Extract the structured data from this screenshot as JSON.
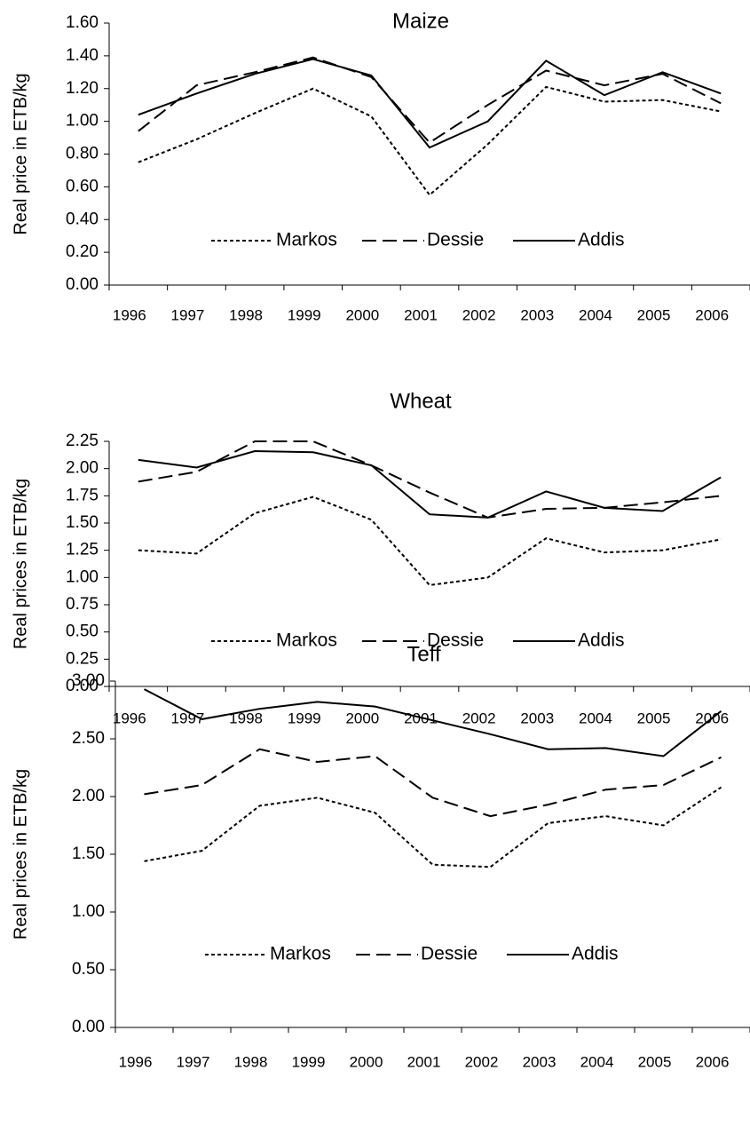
{
  "chart_data": [
    {
      "type": "line",
      "title": "Maize",
      "ylabel": "Real price in ETB/kg",
      "categories": [
        "1996",
        "1997",
        "1998",
        "1999",
        "2000",
        "2001",
        "2002",
        "2003",
        "2004",
        "2005",
        "2006"
      ],
      "ylim": [
        0,
        1.6
      ],
      "yticks": [
        {
          "value": 0,
          "label": "0.00"
        },
        {
          "value": 0.2,
          "label": "0.20"
        },
        {
          "value": 0.4,
          "label": "0.40"
        },
        {
          "value": 0.6,
          "label": "0.60"
        },
        {
          "value": 0.8,
          "label": "0.80"
        },
        {
          "value": 1,
          "label": "1.00"
        },
        {
          "value": 1.2,
          "label": "1.20"
        },
        {
          "value": 1.4,
          "label": "1.40"
        },
        {
          "value": 1.6,
          "label": "1.60"
        }
      ],
      "series": [
        {
          "name": "Markos",
          "color": "#000000",
          "style": "dotted",
          "values": [
            0.75,
            0.89,
            1.05,
            1.2,
            1.03,
            0.55,
            0.86,
            1.21,
            1.12,
            1.13,
            1.06
          ]
        },
        {
          "name": "Dessie",
          "color": "#000000",
          "style": "dashed",
          "values": [
            0.94,
            1.22,
            1.3,
            1.39,
            1.27,
            0.87,
            1.1,
            1.31,
            1.22,
            1.29,
            1.11
          ]
        },
        {
          "name": "Addis",
          "color": "#000000",
          "style": "solid",
          "values": [
            1.04,
            1.17,
            1.29,
            1.38,
            1.28,
            0.84,
            1.0,
            1.37,
            1.16,
            1.3,
            1.17
          ]
        }
      ]
    },
    {
      "type": "line",
      "title": "Wheat",
      "ylabel": "Real prices in ETB/kg",
      "categories": [
        "1996",
        "1997",
        "1998",
        "1999",
        "2000",
        "2001",
        "2002",
        "2003",
        "2004",
        "2005",
        "2006"
      ],
      "ylim": [
        0,
        2.25
      ],
      "yticks": [
        {
          "value": 0,
          "label": "0.00"
        },
        {
          "value": 0.25,
          "label": "0.25"
        },
        {
          "value": 0.5,
          "label": "0.50"
        },
        {
          "value": 0.75,
          "label": "0.75"
        },
        {
          "value": 1,
          "label": "1.00"
        },
        {
          "value": 1.25,
          "label": "1.25"
        },
        {
          "value": 1.5,
          "label": "1.50"
        },
        {
          "value": 1.75,
          "label": "1.75"
        },
        {
          "value": 2,
          "label": "2.00"
        },
        {
          "value": 2.25,
          "label": "2.25"
        }
      ],
      "series": [
        {
          "name": "Markos",
          "color": "#000000",
          "style": "dotted",
          "values": [
            1.25,
            1.22,
            1.59,
            1.74,
            1.53,
            0.93,
            1.0,
            1.36,
            1.23,
            1.25,
            1.35
          ]
        },
        {
          "name": "Dessie",
          "color": "#000000",
          "style": "dashed",
          "values": [
            1.88,
            1.97,
            2.25,
            2.25,
            2.03,
            1.78,
            1.55,
            1.63,
            1.64,
            1.69,
            1.75
          ]
        },
        {
          "name": "Addis",
          "color": "#000000",
          "style": "solid",
          "values": [
            2.08,
            2.01,
            2.16,
            2.15,
            2.03,
            1.58,
            1.55,
            1.79,
            1.64,
            1.61,
            1.92
          ]
        }
      ]
    },
    {
      "type": "line",
      "title": "Teff",
      "ylabel": "Real prices in ETB/kg",
      "categories": [
        "1996",
        "1997",
        "1998",
        "1999",
        "2000",
        "2001",
        "2002",
        "2003",
        "2004",
        "2005",
        "2006"
      ],
      "ylim": [
        0,
        3
      ],
      "yticks": [
        {
          "value": 0,
          "label": "0.00"
        },
        {
          "value": 0.5,
          "label": "0.50"
        },
        {
          "value": 1,
          "label": "1.00"
        },
        {
          "value": 1.5,
          "label": "1.50"
        },
        {
          "value": 2,
          "label": "2.00"
        },
        {
          "value": 2.5,
          "label": "2.50"
        },
        {
          "value": 3,
          "label": "3.00"
        }
      ],
      "series": [
        {
          "name": "Markos",
          "color": "#000000",
          "style": "dotted",
          "values": [
            1.44,
            1.53,
            1.92,
            1.99,
            1.86,
            1.41,
            1.39,
            1.77,
            1.83,
            1.75,
            2.08
          ]
        },
        {
          "name": "Dessie",
          "color": "#000000",
          "style": "dashed",
          "values": [
            2.02,
            2.1,
            2.41,
            2.3,
            2.35,
            1.99,
            1.83,
            1.93,
            2.06,
            2.1,
            2.34
          ]
        },
        {
          "name": "Addis",
          "color": "#000000",
          "style": "solid",
          "values": [
            2.93,
            2.67,
            2.76,
            2.82,
            2.78,
            2.66,
            2.54,
            2.41,
            2.42,
            2.35,
            2.74
          ]
        }
      ]
    }
  ]
}
